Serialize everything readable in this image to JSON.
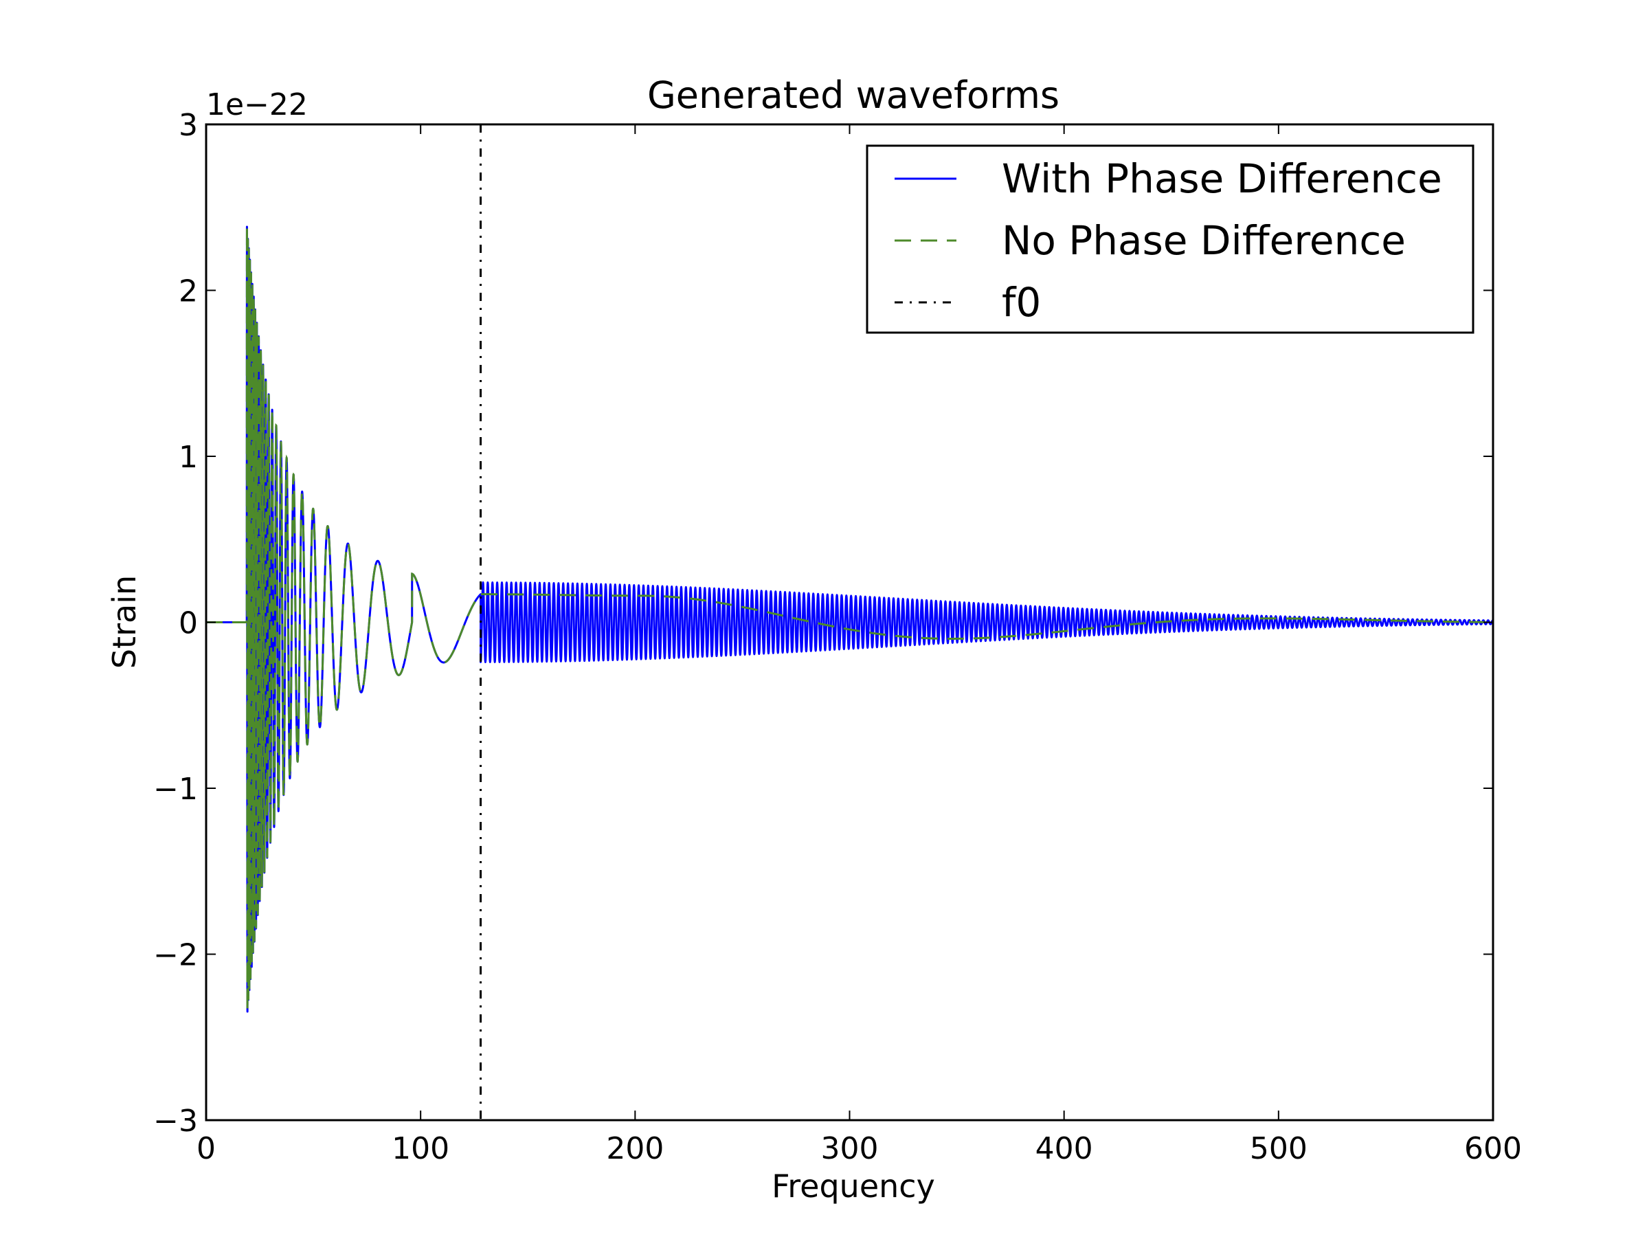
{
  "chart_data": {
    "type": "line",
    "title": "Generated waveforms",
    "xlabel": "Frequency",
    "ylabel": "Strain",
    "y_offset_label": "1e−22",
    "xlim": [
      0,
      600
    ],
    "ylim": [
      -3,
      3
    ],
    "y_scale_factor": 1e-22,
    "x_ticks": [
      0,
      100,
      200,
      300,
      400,
      500,
      600
    ],
    "y_ticks": [
      -3,
      -2,
      -1,
      0,
      1,
      2,
      3
    ],
    "x_tick_labels": [
      "0",
      "100",
      "200",
      "300",
      "400",
      "500",
      "600"
    ],
    "y_tick_labels": [
      "−3",
      "−2",
      "−1",
      "0",
      "1",
      "2",
      "3"
    ],
    "grid": false,
    "legend_position": "upper right",
    "f0": 128,
    "series": [
      {
        "name": "With Phase Difference",
        "color": "#0000ff",
        "style": "solid",
        "description_points": [
          {
            "x": 19,
            "y": 2.65
          },
          {
            "x": 20,
            "y": -2.2
          },
          {
            "x": 49,
            "y": 0.8
          },
          {
            "x": 63,
            "y": 0.58
          },
          {
            "x": 76,
            "y": -0.47
          },
          {
            "x": 96,
            "y": 0.34
          },
          {
            "x": 128,
            "y": -0.23
          },
          {
            "x": 130,
            "y": 0.24
          },
          {
            "x": 300,
            "y": 0.1
          },
          {
            "x": 450,
            "y": 0.02
          },
          {
            "x": 600,
            "y": 0
          }
        ]
      },
      {
        "name": "No Phase Difference",
        "color": "#4d8a2a",
        "style": "dashed",
        "description_points": [
          {
            "x": 19,
            "y": 2.4
          },
          {
            "x": 20,
            "y": -2.2
          },
          {
            "x": 49,
            "y": 0.8
          },
          {
            "x": 63,
            "y": 0.58
          },
          {
            "x": 76,
            "y": -0.47
          },
          {
            "x": 96,
            "y": 0.34
          },
          {
            "x": 128,
            "y": -0.23
          },
          {
            "x": 200,
            "y": 0.16
          },
          {
            "x": 350,
            "y": -0.04
          },
          {
            "x": 450,
            "y": 0.0
          },
          {
            "x": 600,
            "y": 0
          }
        ]
      },
      {
        "name": "f0",
        "color": "#000000",
        "style": "dashdot"
      }
    ]
  }
}
